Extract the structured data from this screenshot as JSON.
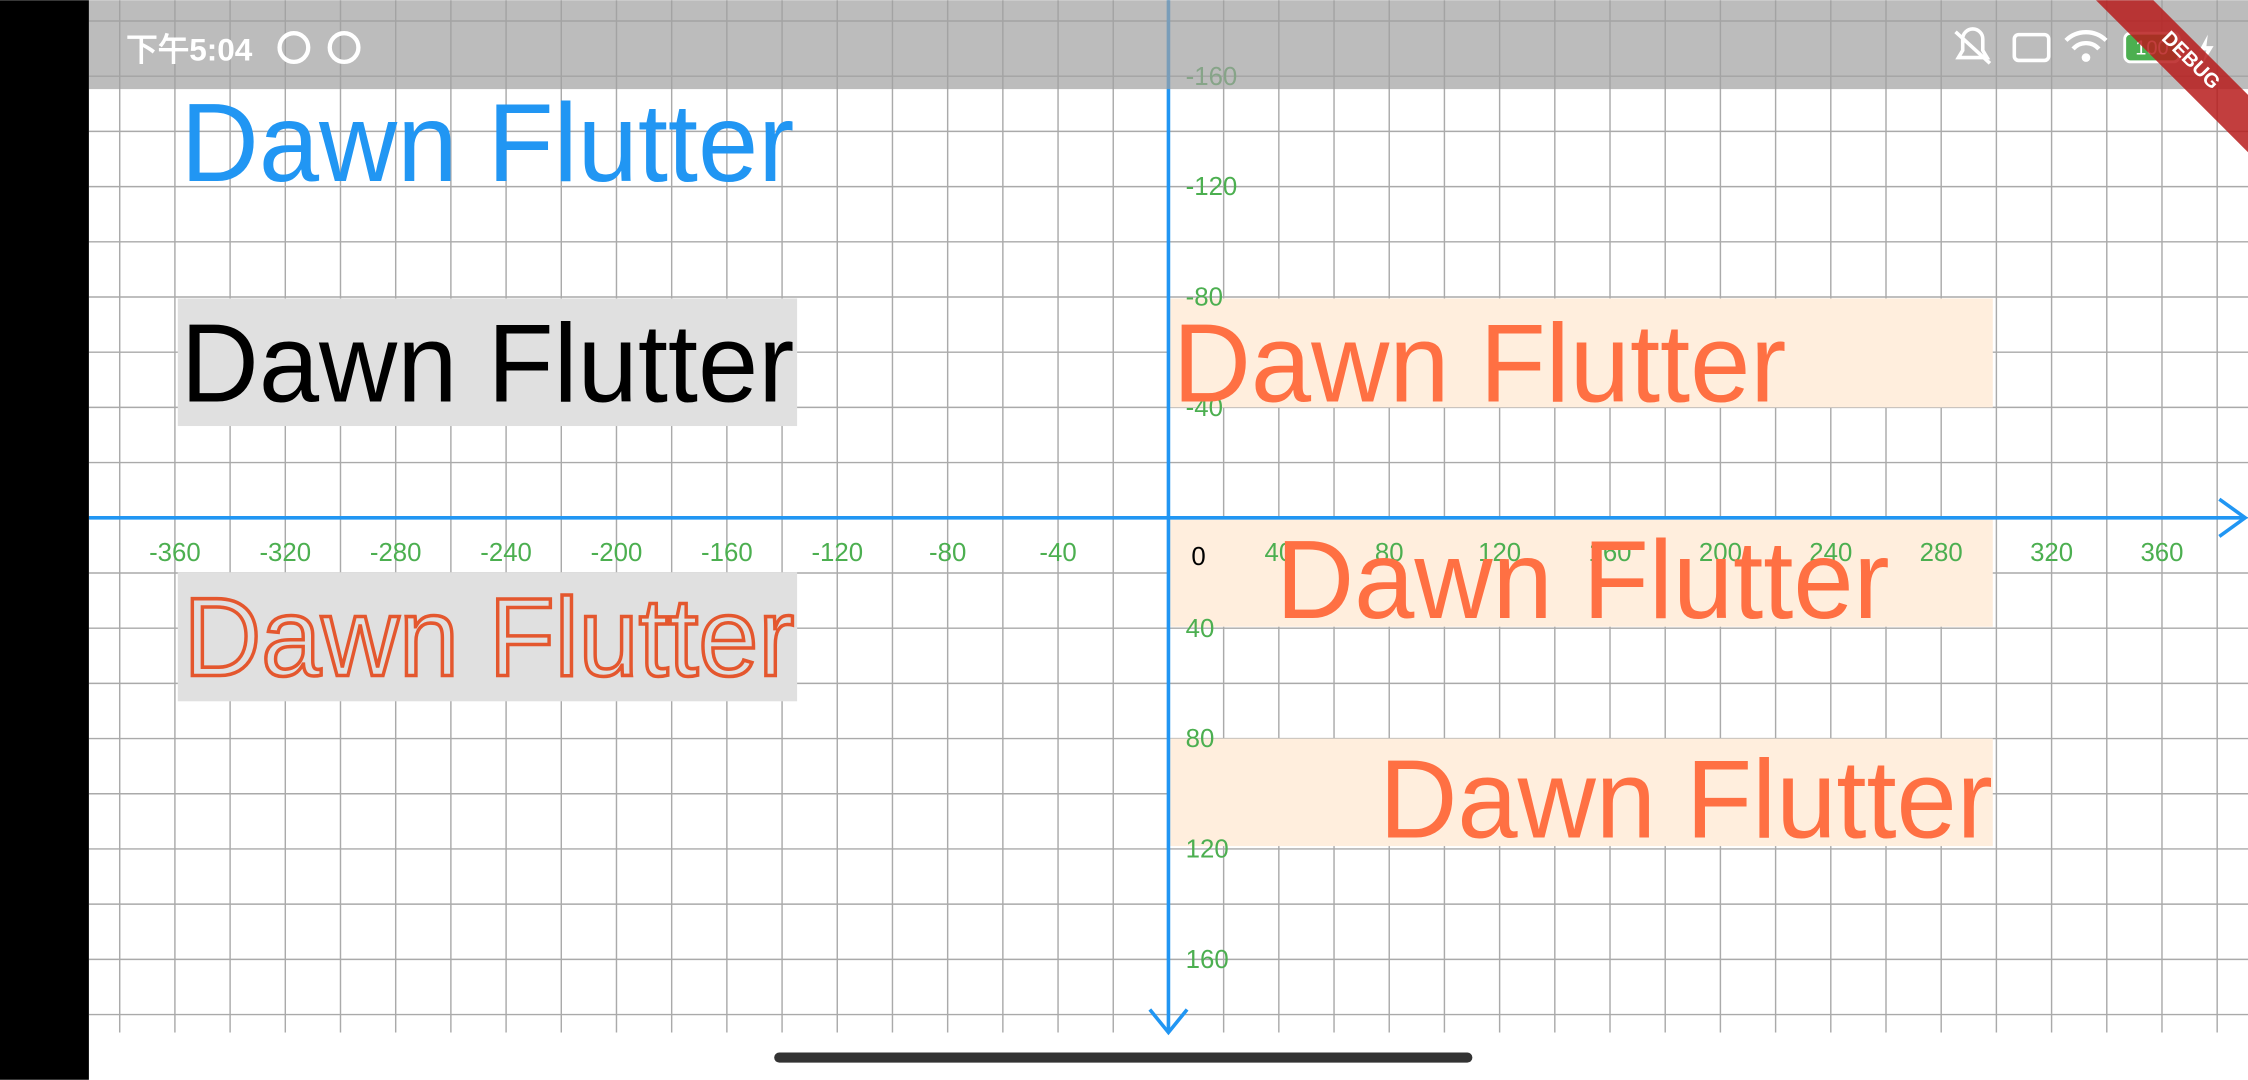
{
  "status_bar": {
    "time": "下午5:04",
    "battery": "100"
  },
  "debug_banner": "DEBUG",
  "texts": [
    "Dawn Flutter",
    "Dawn Flutter",
    "Dawn Flutter",
    "Dawn Flutter",
    "Dawn Flutter",
    "Dawn Flutter"
  ],
  "axis": {
    "x_labels": [
      -360,
      -320,
      -280,
      -240,
      -200,
      -160,
      -120,
      -80,
      -40,
      40,
      80,
      120,
      160,
      200,
      240,
      280,
      320,
      360
    ],
    "y_labels": [
      -160,
      -120,
      -80,
      -40,
      40,
      80,
      120,
      160
    ],
    "origin_label": "0"
  }
}
